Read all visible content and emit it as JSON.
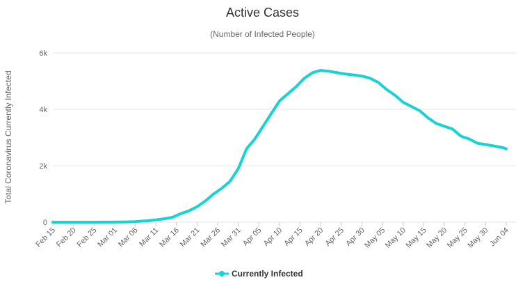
{
  "chart_data": {
    "type": "line",
    "title": "Active Cases",
    "subtitle": "(Number of Infected People)",
    "ylabel": "Total Coronavirus Currently Infected",
    "xlabel": "",
    "ylim": [
      0,
      6000
    ],
    "y_ticks": [
      {
        "value": 0,
        "label": "0"
      },
      {
        "value": 2000,
        "label": "2k"
      },
      {
        "value": 4000,
        "label": "4k"
      },
      {
        "value": 6000,
        "label": "6k"
      }
    ],
    "x_ticks": [
      "Feb 15",
      "Feb 20",
      "Feb 25",
      "Mar 01",
      "Mar 06",
      "Mar 11",
      "Mar 16",
      "Mar 21",
      "Mar 26",
      "Mar 31",
      "Apr 05",
      "Apr 10",
      "Apr 15",
      "Apr 20",
      "Apr 25",
      "Apr 30",
      "May 05",
      "May 10",
      "May 15",
      "May 20",
      "May 25",
      "May 30",
      "Jun 04"
    ],
    "grid": true,
    "legend_position": "bottom-center",
    "series": [
      {
        "name": "Currently Infected",
        "color": "#19d3d3",
        "points": [
          [
            "Feb 15",
            0
          ],
          [
            "Feb 20",
            0
          ],
          [
            "Feb 25",
            0
          ],
          [
            "Mar 01",
            3
          ],
          [
            "Mar 04",
            10
          ],
          [
            "Mar 06",
            20
          ],
          [
            "Mar 09",
            50
          ],
          [
            "Mar 11",
            80
          ],
          [
            "Mar 13",
            120
          ],
          [
            "Mar 15",
            170
          ],
          [
            "Mar 17",
            300
          ],
          [
            "Mar 19",
            400
          ],
          [
            "Mar 21",
            550
          ],
          [
            "Mar 23",
            750
          ],
          [
            "Mar 25",
            1000
          ],
          [
            "Mar 27",
            1200
          ],
          [
            "Mar 29",
            1450
          ],
          [
            "Mar 31",
            1900
          ],
          [
            "Apr 02",
            2600
          ],
          [
            "Apr 04",
            2950
          ],
          [
            "Apr 06",
            3400
          ],
          [
            "Apr 08",
            3850
          ],
          [
            "Apr 10",
            4300
          ],
          [
            "Apr 12",
            4550
          ],
          [
            "Apr 14",
            4800
          ],
          [
            "Apr 16",
            5100
          ],
          [
            "Apr 18",
            5300
          ],
          [
            "Apr 20",
            5380
          ],
          [
            "Apr 22",
            5350
          ],
          [
            "Apr 24",
            5300
          ],
          [
            "Apr 26",
            5250
          ],
          [
            "Apr 28",
            5220
          ],
          [
            "Apr 30",
            5180
          ],
          [
            "May 02",
            5100
          ],
          [
            "May 04",
            4950
          ],
          [
            "May 06",
            4700
          ],
          [
            "May 08",
            4500
          ],
          [
            "May 10",
            4250
          ],
          [
            "May 12",
            4100
          ],
          [
            "May 14",
            3950
          ],
          [
            "May 16",
            3700
          ],
          [
            "May 18",
            3500
          ],
          [
            "May 20",
            3400
          ],
          [
            "May 22",
            3300
          ],
          [
            "May 24",
            3050
          ],
          [
            "May 26",
            2950
          ],
          [
            "May 28",
            2800
          ],
          [
            "May 30",
            2750
          ],
          [
            "Jun 01",
            2700
          ],
          [
            "Jun 03",
            2650
          ],
          [
            "Jun 04",
            2600
          ]
        ]
      }
    ]
  }
}
